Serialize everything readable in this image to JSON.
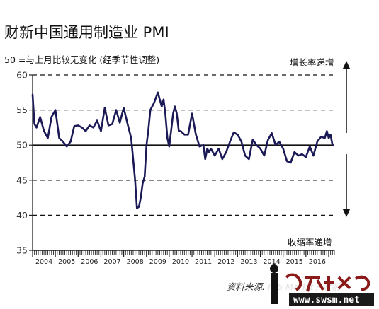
{
  "chart_data": {
    "type": "line",
    "title": "财新中国通用制造业 PMI",
    "subtitle": "50 =与上月比较无变化 (经季节性调整)",
    "arrow_labels": {
      "up": "增长率递增",
      "down": "收缩率递增"
    },
    "source": "资料来源: IHS Markit / 财新",
    "watermark": "www.swsm.net",
    "ylim": [
      35,
      60
    ],
    "yticks": [
      35,
      40,
      45,
      50,
      55,
      60
    ],
    "xlim": [
      2004.0,
      2017.25
    ],
    "years": [
      "2004",
      "2005",
      "2006",
      "2007",
      "2008",
      "2009",
      "2010",
      "2011",
      "2012",
      "2013",
      "2014",
      "2015",
      "2016"
    ],
    "grid": "dashed horizontal at 45 and 55; solid line at 50",
    "series": [
      {
        "color": "#1b1a57",
        "x": [
          2004.0,
          2004.08,
          2004.17,
          2004.33,
          2004.5,
          2004.67,
          2004.83,
          2005.0,
          2005.17,
          2005.33,
          2005.5,
          2005.67,
          2005.83,
          2006.0,
          2006.17,
          2006.33,
          2006.5,
          2006.67,
          2006.83,
          2007.0,
          2007.17,
          2007.33,
          2007.5,
          2007.67,
          2007.83,
          2008.0,
          2008.17,
          2008.33,
          2008.5,
          2008.58,
          2008.67,
          2008.75,
          2008.83,
          2008.92,
          2009.0,
          2009.08,
          2009.17,
          2009.25,
          2009.33,
          2009.5,
          2009.67,
          2009.75,
          2009.83,
          2009.92,
          2010.0,
          2010.08,
          2010.17,
          2010.25,
          2010.33,
          2010.42,
          2010.5,
          2010.67,
          2010.83,
          2011.0,
          2011.17,
          2011.33,
          2011.5,
          2011.58,
          2011.67,
          2011.75,
          2011.83,
          2012.0,
          2012.17,
          2012.33,
          2012.5,
          2012.67,
          2012.83,
          2013.0,
          2013.17,
          2013.33,
          2013.5,
          2013.67,
          2013.83,
          2014.0,
          2014.17,
          2014.33,
          2014.5,
          2014.67,
          2014.83,
          2015.0,
          2015.17,
          2015.33,
          2015.5,
          2015.67,
          2015.83,
          2016.0,
          2016.17,
          2016.33,
          2016.5,
          2016.67,
          2016.83,
          2016.92,
          2017.0,
          2017.08,
          2017.17
        ],
        "y": [
          57.2,
          53.0,
          52.5,
          54.0,
          52.0,
          51.0,
          54.0,
          55.0,
          51.0,
          50.5,
          49.8,
          50.5,
          52.7,
          52.8,
          52.5,
          52.0,
          52.8,
          52.5,
          53.5,
          52.0,
          55.3,
          52.8,
          53.0,
          55.0,
          53.2,
          55.3,
          53.0,
          51.0,
          45.0,
          41.0,
          41.2,
          42.5,
          44.5,
          45.5,
          50.0,
          52.0,
          55.0,
          55.5,
          56.0,
          57.5,
          55.5,
          56.5,
          54.5,
          51.0,
          49.8,
          52.0,
          54.5,
          55.5,
          54.5,
          52.0,
          52.0,
          51.5,
          51.5,
          54.5,
          51.5,
          49.8,
          50.0,
          48.0,
          49.5,
          49.0,
          49.5,
          48.5,
          49.5,
          48.0,
          49.0,
          50.5,
          51.8,
          51.5,
          50.5,
          48.5,
          48.0,
          50.8,
          50.0,
          49.5,
          48.5,
          50.7,
          51.7,
          50.0,
          50.5,
          49.5,
          47.7,
          47.5,
          49.0,
          48.5,
          48.7,
          48.3,
          49.8,
          48.5,
          50.5,
          51.2,
          51.0,
          52.0,
          51.0,
          51.5,
          50.0
        ]
      }
    ]
  }
}
